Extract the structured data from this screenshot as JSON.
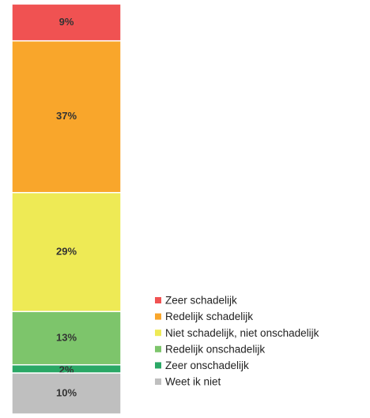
{
  "chart_data": {
    "type": "stacked-bar",
    "series": [
      {
        "name": "Zeer schadelijk",
        "color": "#f05252",
        "values": [
          9
        ],
        "value_labels": [
          "9%"
        ]
      },
      {
        "name": "Redelijk schadelijk",
        "color": "#f9a62b",
        "values": [
          37
        ],
        "value_labels": [
          "37%"
        ]
      },
      {
        "name": "Niet schadelijk, niet onschadelijk",
        "color": "#eeea55",
        "values": [
          29
        ],
        "value_labels": [
          "29%"
        ]
      },
      {
        "name": "Redelijk onschadelijk",
        "color": "#7dc56b",
        "values": [
          13
        ],
        "value_labels": [
          "13%"
        ]
      },
      {
        "name": "Zeer onschadelijk",
        "color": "#2aa866",
        "values": [
          2
        ],
        "value_labels": [
          "2%"
        ]
      },
      {
        "name": "Weet ik niet",
        "color": "#bfbfbf",
        "values": [
          10
        ],
        "value_labels": [
          "10%"
        ]
      }
    ],
    "legend": "bottom-right"
  }
}
